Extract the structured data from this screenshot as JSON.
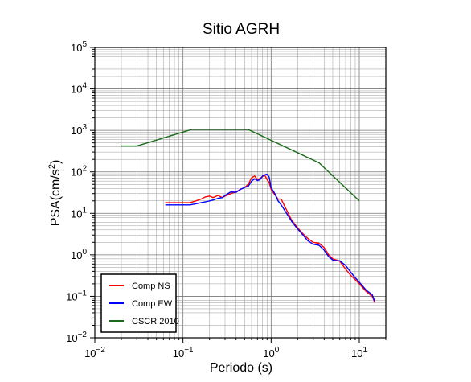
{
  "chart_data": {
    "type": "line",
    "title": "Sitio AGRH",
    "xlabel": "Periodo (s)",
    "ylabel_base": "PSA(cm/s",
    "ylabel_sup": "2",
    "ylabel_close": ")",
    "x_scale": "log",
    "y_scale": "log",
    "xlim": [
      0.01,
      20
    ],
    "ylim": [
      0.01,
      100000
    ],
    "grid": true,
    "legend_position": "bottom-left",
    "x_ticks": [
      {
        "base": "10",
        "exp": "−2",
        "value": 0.01
      },
      {
        "base": "10",
        "exp": "−1",
        "value": 0.1
      },
      {
        "base": "10",
        "exp": "0",
        "value": 1
      },
      {
        "base": "10",
        "exp": "1",
        "value": 10
      }
    ],
    "y_ticks": [
      {
        "base": "10",
        "exp": "−2",
        "value": 0.01
      },
      {
        "base": "10",
        "exp": "−1",
        "value": 0.1
      },
      {
        "base": "10",
        "exp": "0",
        "value": 1
      },
      {
        "base": "10",
        "exp": "1",
        "value": 10
      },
      {
        "base": "10",
        "exp": "2",
        "value": 100
      },
      {
        "base": "10",
        "exp": "3",
        "value": 1000
      },
      {
        "base": "10",
        "exp": "4",
        "value": 10000
      },
      {
        "base": "10",
        "exp": "5",
        "value": 100000
      }
    ],
    "series": [
      {
        "name": "Comp NS",
        "color": "#ff0000",
        "points": [
          [
            0.063,
            18
          ],
          [
            0.08,
            18
          ],
          [
            0.1,
            18
          ],
          [
            0.12,
            18
          ],
          [
            0.14,
            20
          ],
          [
            0.16,
            22
          ],
          [
            0.18,
            25
          ],
          [
            0.2,
            26
          ],
          [
            0.22,
            24
          ],
          [
            0.25,
            27
          ],
          [
            0.28,
            24
          ],
          [
            0.3,
            26
          ],
          [
            0.35,
            30
          ],
          [
            0.4,
            33
          ],
          [
            0.45,
            38
          ],
          [
            0.5,
            42
          ],
          [
            0.55,
            50
          ],
          [
            0.6,
            72
          ],
          [
            0.65,
            80
          ],
          [
            0.7,
            65
          ],
          [
            0.75,
            70
          ],
          [
            0.8,
            78
          ],
          [
            0.85,
            82
          ],
          [
            0.9,
            65
          ],
          [
            0.95,
            55
          ],
          [
            1.0,
            38
          ],
          [
            1.1,
            28
          ],
          [
            1.2,
            22
          ],
          [
            1.3,
            22
          ],
          [
            1.5,
            12
          ],
          [
            1.7,
            7
          ],
          [
            2.0,
            4.5
          ],
          [
            2.3,
            3.2
          ],
          [
            2.6,
            2.5
          ],
          [
            3.0,
            2.0
          ],
          [
            3.5,
            1.9
          ],
          [
            4.0,
            1.5
          ],
          [
            4.5,
            1.0
          ],
          [
            5.0,
            0.8
          ],
          [
            5.5,
            0.75
          ],
          [
            6.0,
            0.7
          ],
          [
            7.0,
            0.45
          ],
          [
            8.0,
            0.32
          ],
          [
            9.0,
            0.25
          ],
          [
            10.0,
            0.2
          ],
          [
            12.0,
            0.13
          ],
          [
            14.0,
            0.1
          ],
          [
            15.0,
            0.07
          ]
        ]
      },
      {
        "name": "Comp EW",
        "color": "#0000ff",
        "points": [
          [
            0.063,
            16
          ],
          [
            0.08,
            16
          ],
          [
            0.1,
            16
          ],
          [
            0.12,
            16
          ],
          [
            0.14,
            17
          ],
          [
            0.16,
            18
          ],
          [
            0.18,
            19
          ],
          [
            0.2,
            20
          ],
          [
            0.22,
            21
          ],
          [
            0.25,
            23
          ],
          [
            0.28,
            24
          ],
          [
            0.3,
            27
          ],
          [
            0.35,
            33
          ],
          [
            0.4,
            32
          ],
          [
            0.45,
            38
          ],
          [
            0.5,
            42
          ],
          [
            0.55,
            45
          ],
          [
            0.6,
            60
          ],
          [
            0.65,
            68
          ],
          [
            0.7,
            62
          ],
          [
            0.75,
            65
          ],
          [
            0.8,
            80
          ],
          [
            0.85,
            85
          ],
          [
            0.9,
            88
          ],
          [
            0.95,
            75
          ],
          [
            1.0,
            42
          ],
          [
            1.1,
            30
          ],
          [
            1.2,
            20
          ],
          [
            1.3,
            16
          ],
          [
            1.5,
            10
          ],
          [
            1.7,
            6.5
          ],
          [
            2.0,
            4.2
          ],
          [
            2.3,
            3.0
          ],
          [
            2.6,
            2.2
          ],
          [
            3.0,
            1.8
          ],
          [
            3.5,
            1.7
          ],
          [
            4.0,
            1.3
          ],
          [
            4.5,
            0.9
          ],
          [
            5.0,
            0.75
          ],
          [
            5.5,
            0.72
          ],
          [
            6.0,
            0.72
          ],
          [
            7.0,
            0.55
          ],
          [
            8.0,
            0.38
          ],
          [
            9.0,
            0.28
          ],
          [
            10.0,
            0.22
          ],
          [
            12.0,
            0.14
          ],
          [
            14.0,
            0.11
          ],
          [
            15.0,
            0.075
          ]
        ]
      },
      {
        "name": "CSCR 2010",
        "color": "#1a6b1a",
        "points": [
          [
            0.02,
            420
          ],
          [
            0.03,
            420
          ],
          [
            0.125,
            1050
          ],
          [
            0.55,
            1050
          ],
          [
            3.5,
            165
          ],
          [
            10.0,
            20
          ]
        ]
      }
    ]
  }
}
